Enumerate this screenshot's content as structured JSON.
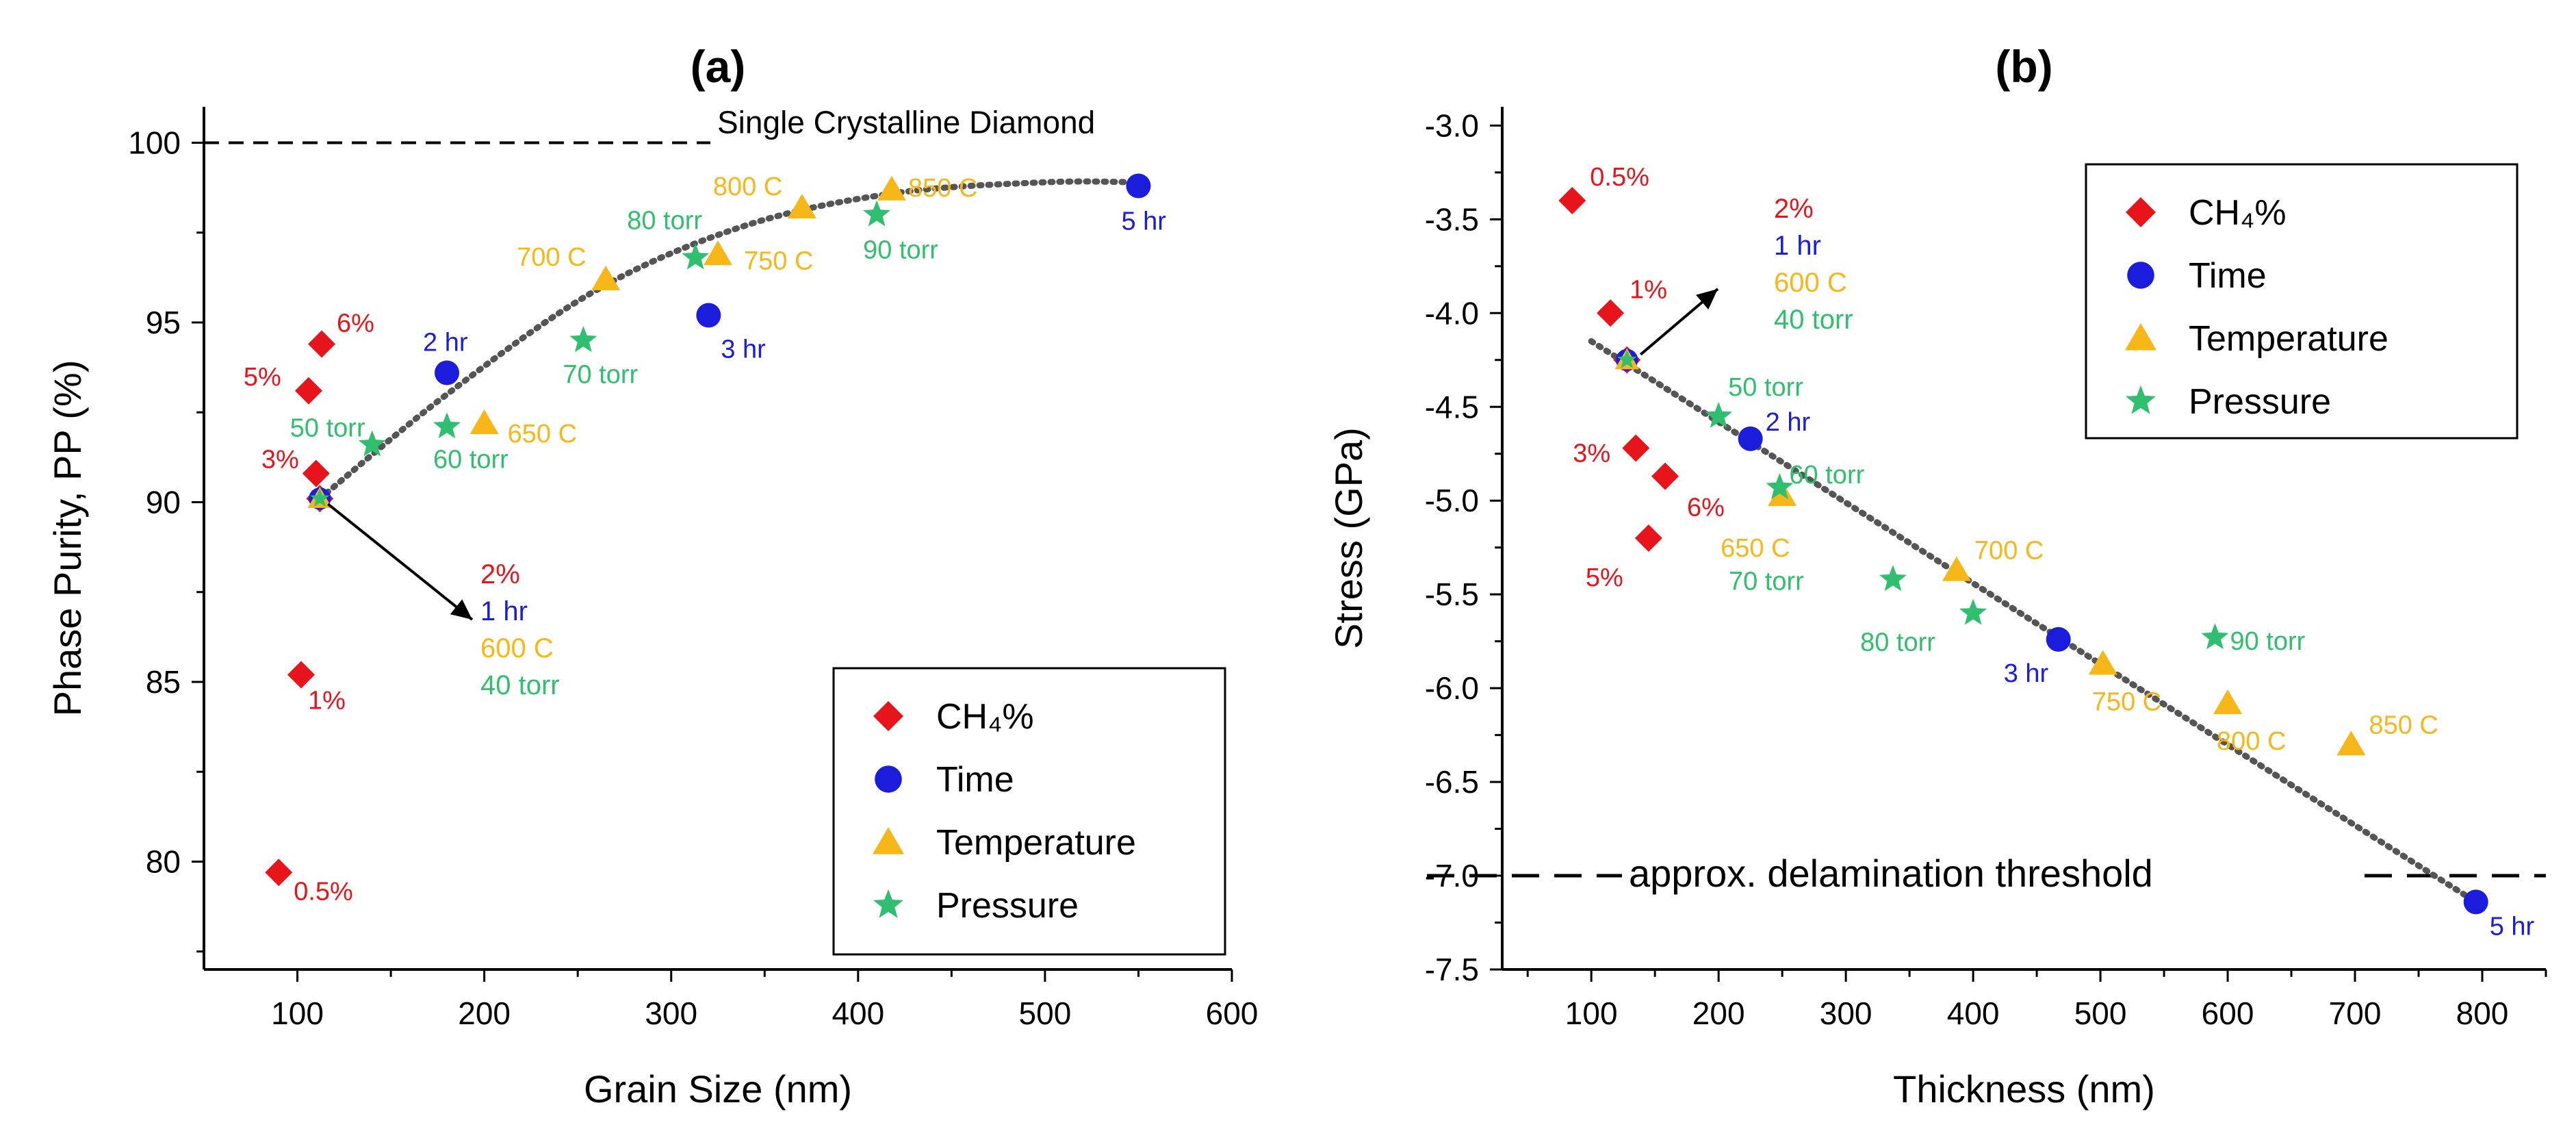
{
  "colors": {
    "ch4": "#e8141c",
    "time": "#1c1cdc",
    "temperature": "#f7b718",
    "pressure": "#2fbf6e",
    "fit": "#555555"
  },
  "legend_entries": [
    "CH₄%",
    "Time",
    "Temperature",
    "Pressure"
  ],
  "chart_data": [
    {
      "type": "scatter",
      "panel_label": "(a)",
      "xlabel": "Grain Size (nm)",
      "ylabel": "Phase Purity, PP (%)",
      "xlim": [
        50,
        600
      ],
      "ylim": [
        77,
        101
      ],
      "x_ticks": [
        100,
        200,
        300,
        400,
        500,
        600
      ],
      "y_ticks": [
        80,
        85,
        90,
        95,
        100
      ],
      "legend_position": "bottom-right",
      "reference_line": {
        "y": 100,
        "label": "Single Crystalline Diamond"
      },
      "series": [
        {
          "name": "CH4%",
          "marker": "diamond",
          "points": [
            {
              "x": 90,
              "y": 79.7,
              "label": "0.5%"
            },
            {
              "x": 102,
              "y": 85.2,
              "label": "1%"
            },
            {
              "x": 110,
              "y": 90.8,
              "label": "3%"
            },
            {
              "x": 106,
              "y": 93.1,
              "label": "5%"
            },
            {
              "x": 113,
              "y": 94.4,
              "label": "6%"
            }
          ]
        },
        {
          "name": "Time",
          "marker": "circle",
          "points": [
            {
              "x": 180,
              "y": 93.6,
              "label": "2 hr"
            },
            {
              "x": 320,
              "y": 95.2,
              "label": "3 hr"
            },
            {
              "x": 550,
              "y": 98.8,
              "label": "5 hr"
            }
          ]
        },
        {
          "name": "Temperature",
          "marker": "triangle",
          "points": [
            {
              "x": 200,
              "y": 92.2,
              "label": "650 C"
            },
            {
              "x": 265,
              "y": 96.2,
              "label": "700 C"
            },
            {
              "x": 325,
              "y": 96.9,
              "label": "750 C"
            },
            {
              "x": 370,
              "y": 98.2,
              "label": "800 C"
            },
            {
              "x": 418,
              "y": 98.7,
              "label": "850 C"
            }
          ]
        },
        {
          "name": "Pressure",
          "marker": "star",
          "points": [
            {
              "x": 140,
              "y": 91.6,
              "label": "50 torr"
            },
            {
              "x": 180,
              "y": 92.1,
              "label": "60 torr"
            },
            {
              "x": 253,
              "y": 94.5,
              "label": "70 torr"
            },
            {
              "x": 313,
              "y": 96.8,
              "label": "80 torr"
            },
            {
              "x": 410,
              "y": 98.0,
              "label": "90 torr"
            }
          ]
        }
      ],
      "common_point": {
        "x": 112,
        "y": 90.1,
        "labels": [
          "2%",
          "1 hr",
          "600 C",
          "40 torr"
        ]
      },
      "trend": {
        "x": [
          112,
          180,
          260,
          340,
          420,
          500,
          550
        ],
        "y": [
          90.1,
          93.0,
          95.9,
          97.7,
          98.6,
          98.9,
          98.9
        ]
      }
    },
    {
      "type": "scatter",
      "panel_label": "(b)",
      "xlabel": "Thickness (nm)",
      "ylabel": "Stress (GPa)",
      "xlim": [
        30,
        850
      ],
      "ylim": [
        -7.5,
        -2.9
      ],
      "x_ticks": [
        100,
        200,
        300,
        400,
        500,
        600,
        700,
        800
      ],
      "y_ticks": [
        -3.0,
        -3.5,
        -4.0,
        -4.5,
        -5.0,
        -5.5,
        -6.0,
        -6.5,
        -7.0,
        -7.5
      ],
      "y_tick_labels": [
        "-3.0",
        "-3.5",
        "-4.0",
        "-4.5",
        "-5.0",
        "-5.5",
        "-6.0",
        "-6.5",
        "-7.0",
        "-7.5"
      ],
      "legend_position": "top-right",
      "reference_line": {
        "y": -7.0,
        "label": "approx. delamination threshold"
      },
      "series": [
        {
          "name": "CH4%",
          "marker": "diamond",
          "points": [
            {
              "x": 85,
              "y": -3.4,
              "label": "0.5%"
            },
            {
              "x": 115,
              "y": -4.0,
              "label": "1%"
            },
            {
              "x": 135,
              "y": -4.72,
              "label": "3%"
            },
            {
              "x": 145,
              "y": -5.2,
              "label": "5%"
            },
            {
              "x": 158,
              "y": -4.87,
              "label": "6%"
            }
          ]
        },
        {
          "name": "Time",
          "marker": "circle",
          "points": [
            {
              "x": 225,
              "y": -4.67,
              "label": "2 hr"
            },
            {
              "x": 467,
              "y": -5.74,
              "label": "3 hr"
            },
            {
              "x": 795,
              "y": -7.14,
              "label": "5 hr"
            }
          ]
        },
        {
          "name": "Temperature",
          "marker": "triangle",
          "points": [
            {
              "x": 250,
              "y": -4.97,
              "label": "650 C"
            },
            {
              "x": 387,
              "y": -5.37,
              "label": "700 C"
            },
            {
              "x": 502,
              "y": -5.87,
              "label": "750 C"
            },
            {
              "x": 600,
              "y": -6.08,
              "label": "800 C"
            },
            {
              "x": 697,
              "y": -6.3,
              "label": "850 C"
            }
          ]
        },
        {
          "name": "Pressure",
          "marker": "star",
          "points": [
            {
              "x": 200,
              "y": -4.55,
              "label": "50 torr"
            },
            {
              "x": 248,
              "y": -4.93,
              "label": "60 torr"
            },
            {
              "x": 337,
              "y": -5.42,
              "label": "70 torr"
            },
            {
              "x": 400,
              "y": -5.6,
              "label": "80 torr"
            },
            {
              "x": 590,
              "y": -5.73,
              "label": "90 torr"
            }
          ]
        }
      ],
      "common_point": {
        "x": 128,
        "y": -4.25,
        "labels": [
          "2%",
          "1 hr",
          "600 C",
          "40 torr"
        ]
      },
      "trend": {
        "x": [
          100,
          795
        ],
        "y": [
          -4.15,
          -7.14
        ]
      }
    }
  ]
}
